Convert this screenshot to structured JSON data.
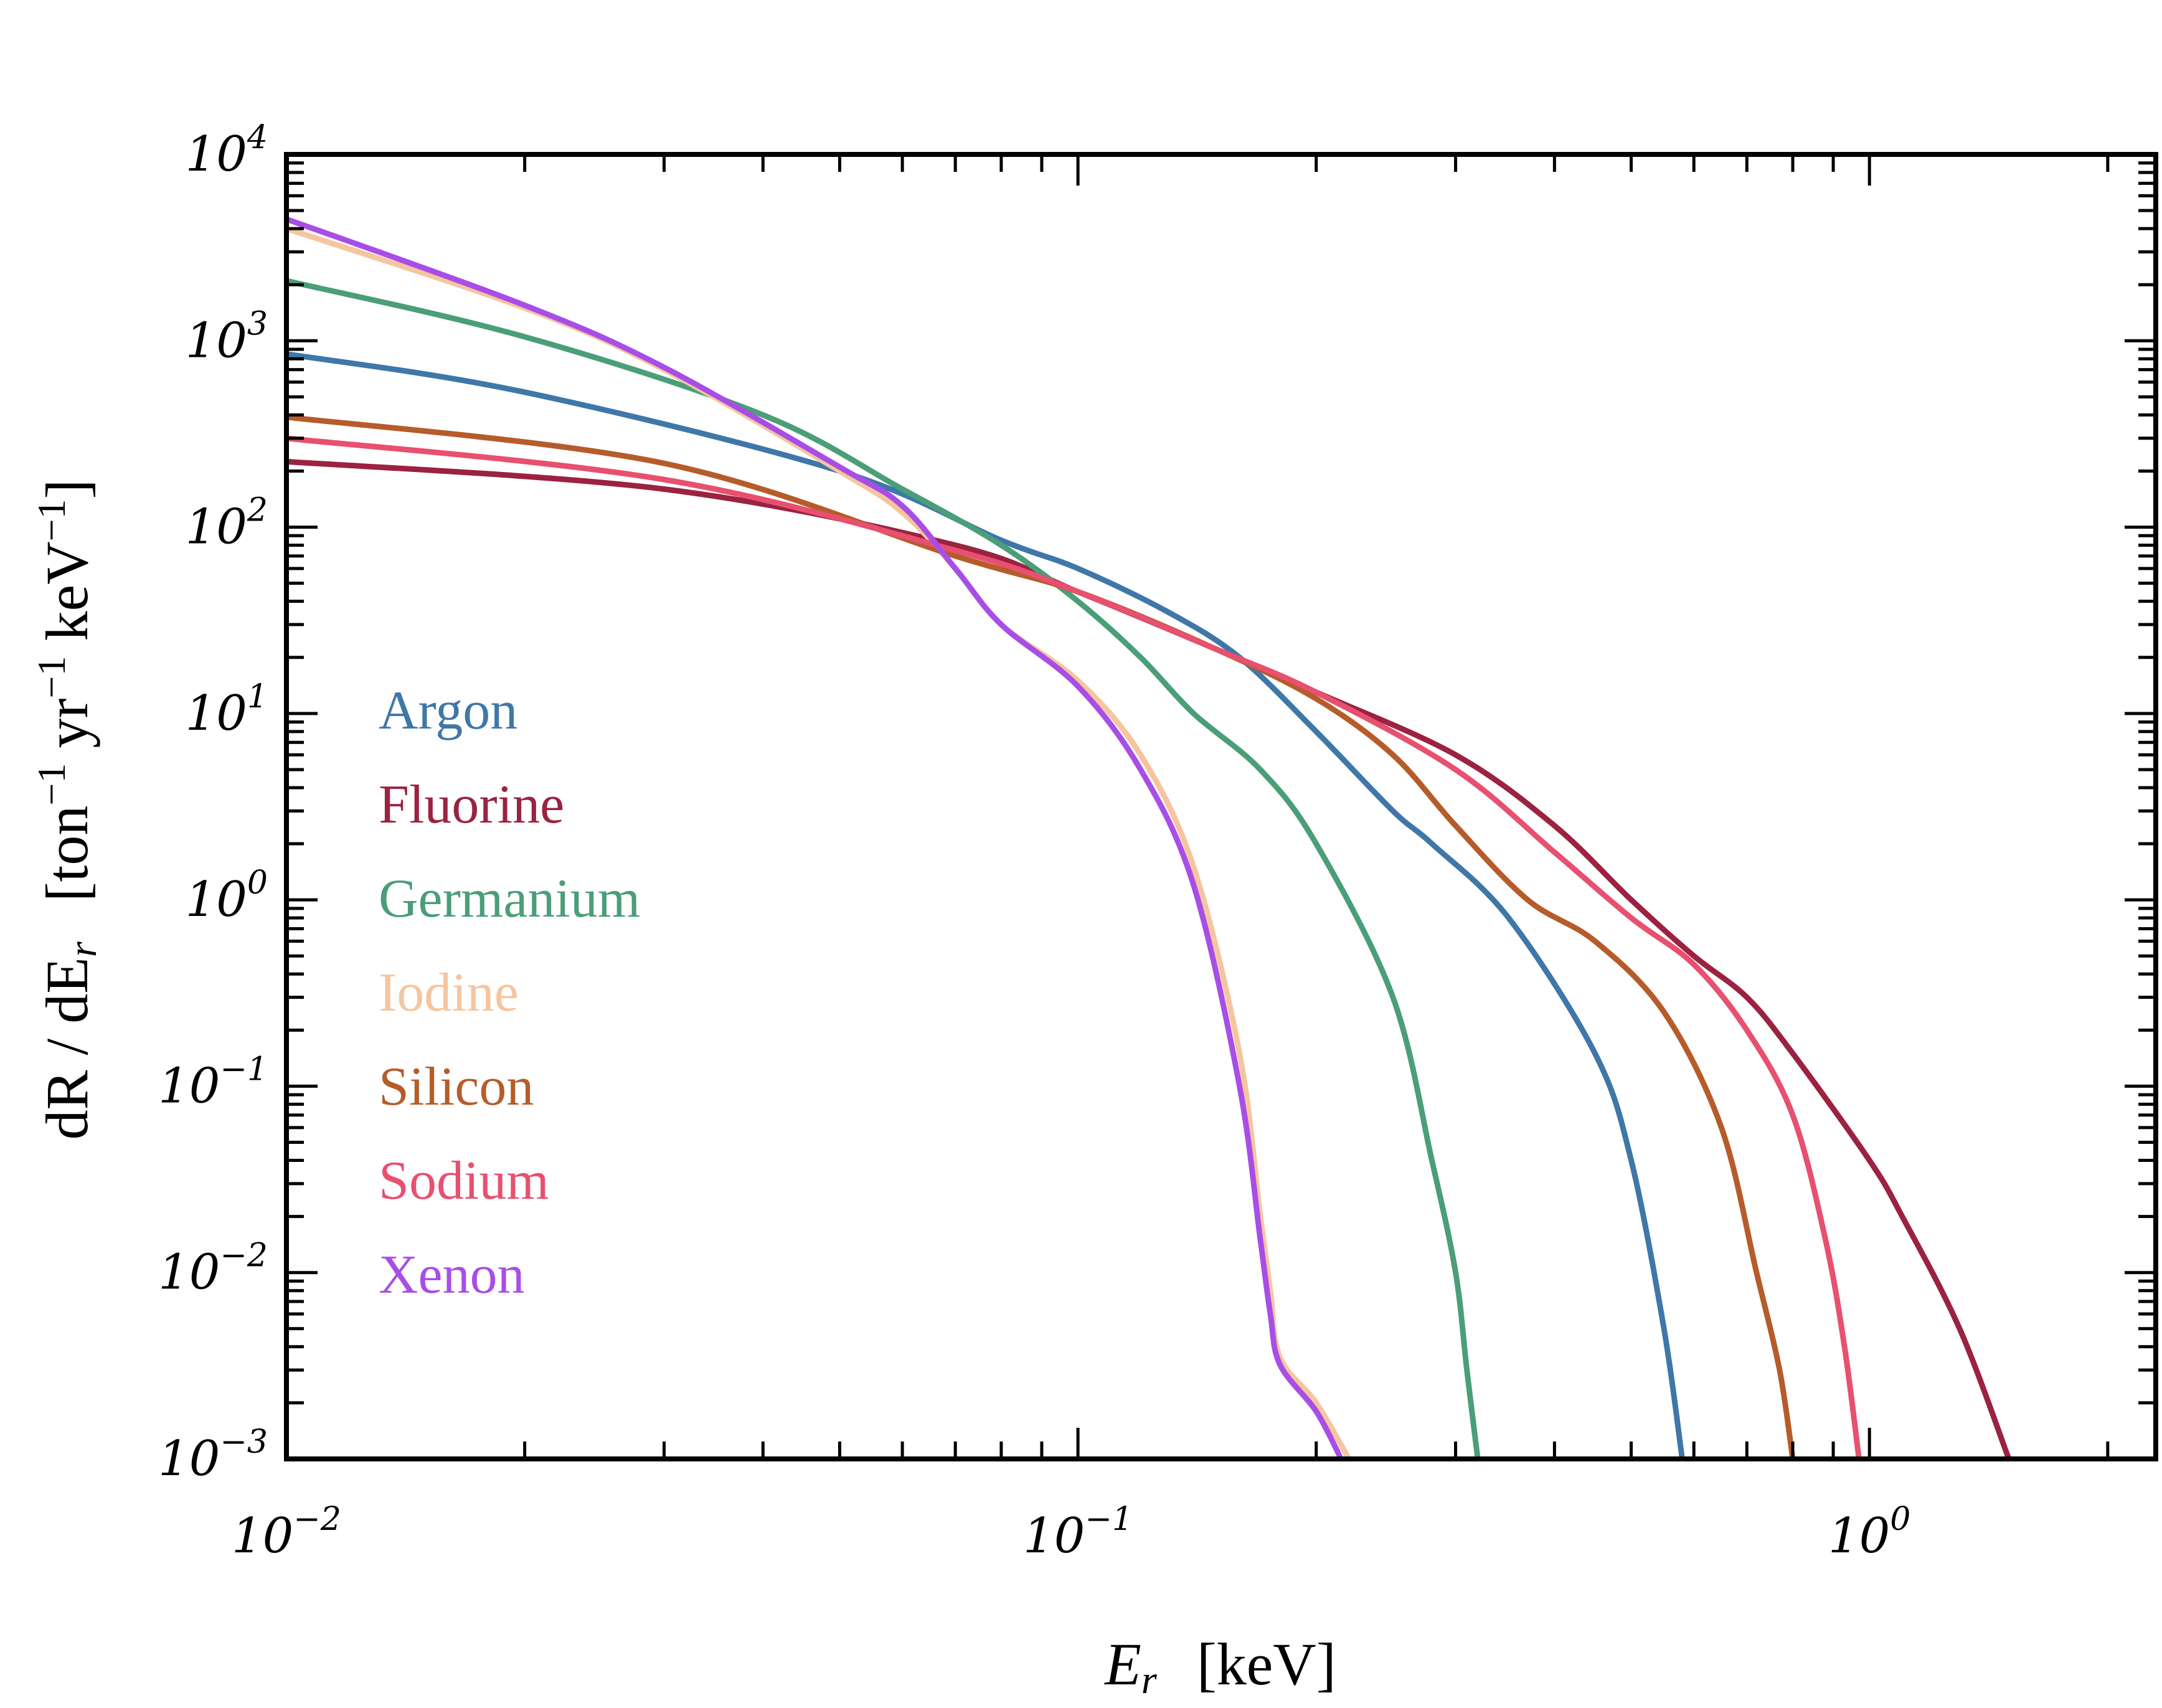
{
  "chart_data": {
    "type": "line",
    "title": "",
    "x_scale": "log",
    "y_scale": "log",
    "xlim": [
      0.01,
      2.3
    ],
    "ylim": [
      0.001,
      10000
    ],
    "xlabel": {
      "main": "E",
      "sub": "r",
      "units": "[keV]"
    },
    "ylabel": {
      "prefix": "dR / dE",
      "sub": "r",
      "units_open": "[ton",
      "exp": "−1",
      "yr": " yr",
      "kev": " keV",
      "units_close": "]"
    },
    "x_ticks": [
      {
        "value": 0.01,
        "base": "10",
        "exp": "−2"
      },
      {
        "value": 0.1,
        "base": "10",
        "exp": "−1"
      },
      {
        "value": 1,
        "base": "10",
        "exp": "0"
      }
    ],
    "y_ticks": [
      {
        "value": 10000,
        "base": "10",
        "exp": "4"
      },
      {
        "value": 1000,
        "base": "10",
        "exp": "3"
      },
      {
        "value": 100,
        "base": "10",
        "exp": "2"
      },
      {
        "value": 10,
        "base": "10",
        "exp": "1"
      },
      {
        "value": 1,
        "base": "10",
        "exp": "0"
      },
      {
        "value": 0.1,
        "base": "10",
        "exp": "−1"
      },
      {
        "value": 0.01,
        "base": "10",
        "exp": "−2"
      },
      {
        "value": 0.001,
        "base": "10",
        "exp": "−3"
      }
    ],
    "legend_position": "left-center",
    "series": [
      {
        "name": "Argon",
        "color": "#3f77a8",
        "x": [
          0.01,
          0.02,
          0.05,
          0.08,
          0.1,
          0.13,
          0.16,
          0.2,
          0.25,
          0.28,
          0.35,
          0.45,
          0.5,
          0.55,
          0.58
        ],
        "y": [
          850,
          530,
          200,
          85,
          60,
          35,
          20,
          8,
          3,
          2,
          0.8,
          0.15,
          0.04,
          0.005,
          0.001
        ]
      },
      {
        "name": "Fluorine",
        "color": "#9b2240",
        "x": [
          0.01,
          0.03,
          0.07,
          0.1,
          0.15,
          0.2,
          0.3,
          0.4,
          0.5,
          0.6,
          0.7,
          0.8,
          1.0,
          1.1,
          1.3,
          1.5
        ],
        "y": [
          225,
          160,
          80,
          45,
          22,
          13,
          6,
          2.5,
          1,
          0.5,
          0.3,
          0.15,
          0.04,
          0.02,
          0.005,
          0.001
        ]
      },
      {
        "name": "Germanium",
        "color": "#4a9e78",
        "x": [
          0.01,
          0.02,
          0.04,
          0.06,
          0.08,
          0.1,
          0.12,
          0.14,
          0.17,
          0.2,
          0.25,
          0.28,
          0.3,
          0.31,
          0.32
        ],
        "y": [
          2100,
          1050,
          400,
          160,
          80,
          40,
          20,
          10,
          5,
          2,
          0.3,
          0.04,
          0.01,
          0.003,
          0.001
        ]
      },
      {
        "name": "Iodine",
        "color": "#f5c59f",
        "x": [
          0.01,
          0.02,
          0.03,
          0.05,
          0.06,
          0.07,
          0.08,
          0.1,
          0.12,
          0.14,
          0.16,
          0.17,
          0.175,
          0.18,
          0.2,
          0.22
        ],
        "y": [
          4000,
          1500,
          700,
          200,
          120,
          60,
          30,
          15,
          6,
          1.5,
          0.15,
          0.02,
          0.008,
          0.0035,
          0.002,
          0.001
        ]
      },
      {
        "name": "Silicon",
        "color": "#b65c2a",
        "x": [
          0.01,
          0.03,
          0.07,
          0.1,
          0.15,
          0.2,
          0.25,
          0.3,
          0.37,
          0.45,
          0.55,
          0.65,
          0.72,
          0.77,
          0.8
        ],
        "y": [
          390,
          220,
          70,
          45,
          22,
          12,
          6,
          2.5,
          1,
          0.6,
          0.25,
          0.06,
          0.01,
          0.003,
          0.001
        ]
      },
      {
        "name": "Sodium",
        "color": "#e8506f",
        "x": [
          0.01,
          0.03,
          0.07,
          0.1,
          0.15,
          0.2,
          0.3,
          0.4,
          0.5,
          0.6,
          0.7,
          0.8,
          0.88,
          0.93,
          0.97
        ],
        "y": [
          300,
          180,
          75,
          45,
          22,
          13,
          5,
          1.8,
          0.8,
          0.45,
          0.2,
          0.07,
          0.015,
          0.004,
          0.001
        ]
      },
      {
        "name": "Xenon",
        "color": "#a84ee6",
        "x": [
          0.01,
          0.02,
          0.03,
          0.05,
          0.06,
          0.07,
          0.08,
          0.1,
          0.12,
          0.14,
          0.16,
          0.17,
          0.175,
          0.18,
          0.2,
          0.215
        ],
        "y": [
          4500,
          1550,
          720,
          210,
          130,
          60,
          30,
          14,
          5,
          1.2,
          0.1,
          0.015,
          0.006,
          0.0032,
          0.0018,
          0.001
        ]
      }
    ]
  }
}
